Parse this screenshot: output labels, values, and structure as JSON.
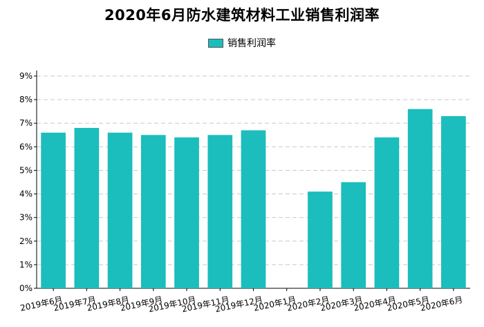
{
  "chart_data": {
    "type": "bar",
    "title": "2020年6月防水建筑材料工业销售利润率",
    "legend": "销售利润率",
    "legend_position": "top-center",
    "categories": [
      "2019年6月",
      "2019年7月",
      "2019年8月",
      "2019年9月",
      "2019年10月",
      "2019年11月",
      "2019年12月",
      "2020年1月",
      "2020年2月",
      "2020年3月",
      "2020年4月",
      "2020年5月",
      "2020年6月"
    ],
    "series": [
      {
        "name": "销售利润率",
        "values": [
          6.6,
          6.8,
          6.6,
          6.5,
          6.4,
          6.5,
          6.7,
          null,
          4.1,
          4.5,
          6.4,
          7.6,
          7.3
        ]
      }
    ],
    "y_ticks": [
      "0%",
      "1%",
      "2%",
      "3%",
      "4%",
      "5%",
      "6%",
      "7%",
      "8%",
      "9%"
    ],
    "ylim": [
      0,
      9
    ],
    "grid": true,
    "bar_color": "#1bbdbd"
  }
}
